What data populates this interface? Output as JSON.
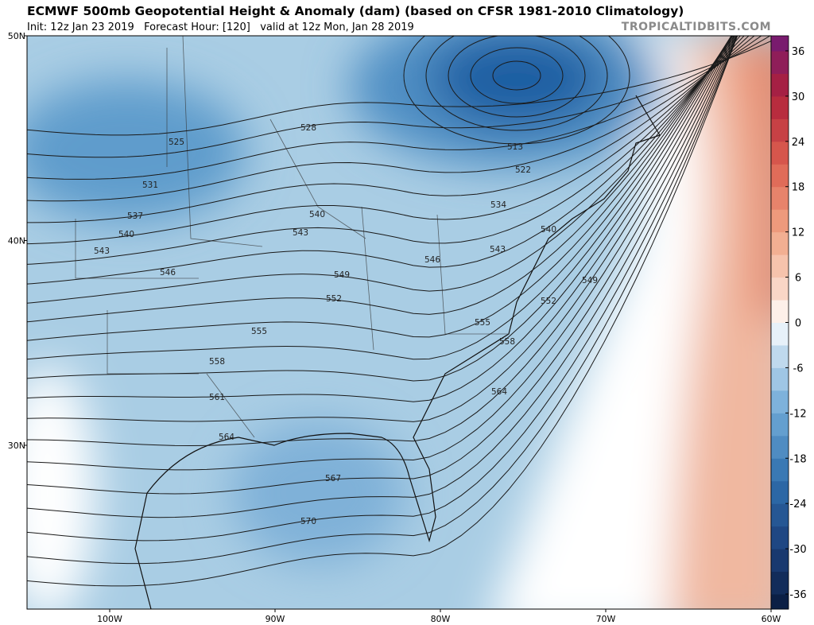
{
  "header": {
    "title": "ECMWF 500mb Geopotential Height & Anomaly (dam) (based on CFSR 1981-2010 Climatology)",
    "subtitle": "Init: 12z Jan 23 2019   Forecast Hour: [120]   valid at 12z Mon, Jan 28 2019",
    "watermark": "TROPICALTIDBITS.COM"
  },
  "map": {
    "lon_range": [
      -105,
      -60
    ],
    "lat_range": [
      22,
      50
    ],
    "lon_ticks": [
      {
        "value": -100,
        "label": "100W"
      },
      {
        "value": -90,
        "label": "90W"
      },
      {
        "value": -80,
        "label": "80W"
      },
      {
        "value": -70,
        "label": "70W"
      },
      {
        "value": -60,
        "label": "60W"
      }
    ],
    "lat_ticks": [
      {
        "value": 50,
        "label": "50N"
      },
      {
        "value": 40,
        "label": "40N"
      },
      {
        "value": 30,
        "label": "30N"
      }
    ],
    "contour_labels": [
      525,
      528,
      531,
      537,
      540,
      543,
      546,
      540,
      543,
      549,
      546,
      552,
      555,
      558,
      561,
      564,
      567,
      570,
      513,
      522,
      534,
      540,
      543,
      549,
      552,
      555,
      558,
      564
    ]
  },
  "colorbar": {
    "range": [
      -38,
      38
    ],
    "ticks": [
      36,
      30,
      24,
      18,
      12,
      6,
      0,
      -6,
      -12,
      -18,
      -24,
      -30,
      -36
    ]
  }
}
